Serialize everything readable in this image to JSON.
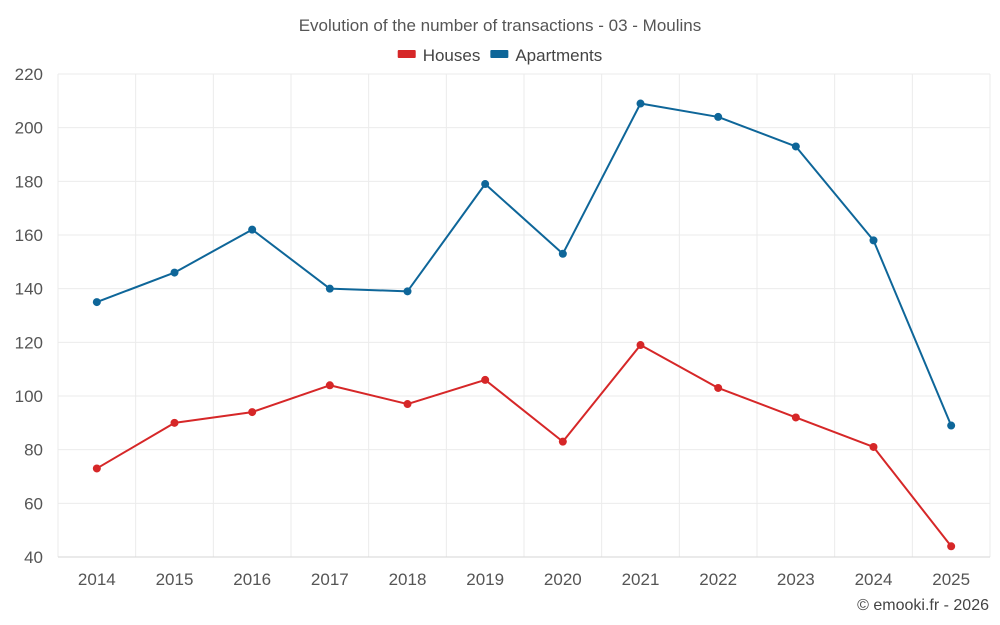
{
  "chart_data": {
    "type": "line",
    "title": "Evolution of the number of transactions - 03 - Moulins",
    "xlabel": "",
    "ylabel": "",
    "categories": [
      "2014",
      "2015",
      "2016",
      "2017",
      "2018",
      "2019",
      "2020",
      "2021",
      "2022",
      "2023",
      "2024",
      "2025"
    ],
    "ylim": [
      40,
      220
    ],
    "yticks": [
      40,
      60,
      80,
      100,
      120,
      140,
      160,
      180,
      200,
      220
    ],
    "grid": true,
    "legend_position": "top-center",
    "series": [
      {
        "name": "Houses",
        "color": "#d62728",
        "values": [
          73,
          90,
          94,
          104,
          97,
          106,
          83,
          119,
          103,
          92,
          81,
          44
        ]
      },
      {
        "name": "Apartments",
        "color": "#0e6699",
        "values": [
          135,
          146,
          162,
          140,
          139,
          179,
          153,
          209,
          204,
          193,
          158,
          89
        ]
      }
    ]
  },
  "credit": "© emooki.fr - 2026"
}
